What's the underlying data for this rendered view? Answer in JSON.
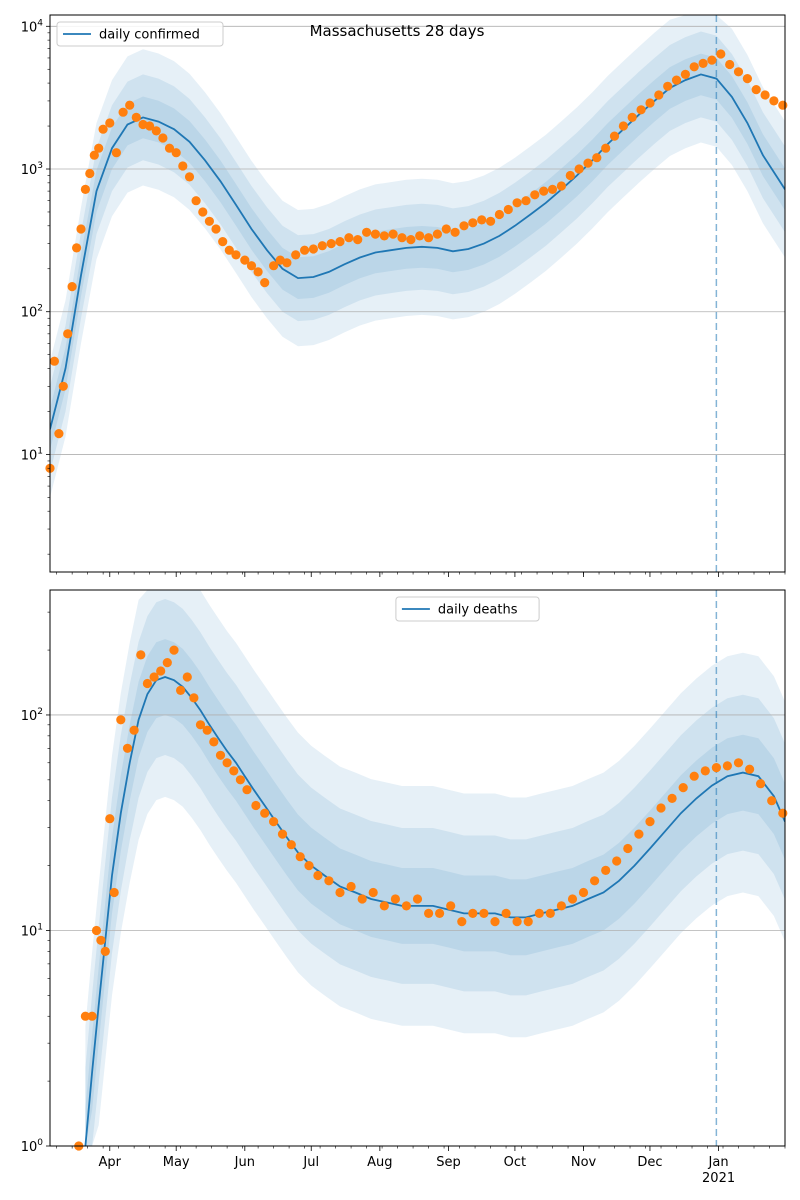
{
  "figure_title": "Massachusetts 28 days",
  "colors": {
    "line": "#1f77b4",
    "points": "#ff7f0e",
    "band": "#1f77b4",
    "vline": "#1f77b4",
    "grid": "#b0b0b0"
  },
  "x_axis": {
    "ticks": [
      {
        "date": "2020-04-01",
        "label": "Apr"
      },
      {
        "date": "2020-05-01",
        "label": "May"
      },
      {
        "date": "2020-06-01",
        "label": "Jun"
      },
      {
        "date": "2020-07-01",
        "label": "Jul"
      },
      {
        "date": "2020-08-01",
        "label": "Aug"
      },
      {
        "date": "2020-09-01",
        "label": "Sep"
      },
      {
        "date": "2020-10-01",
        "label": "Oct"
      },
      {
        "date": "2020-11-01",
        "label": "Nov"
      },
      {
        "date": "2020-12-01",
        "label": "Dec"
      },
      {
        "date": "2021-01-01",
        "label": "Jan"
      }
    ],
    "year_label": "2021",
    "range": [
      "2020-03-05",
      "2021-01-31"
    ]
  },
  "chart_data": [
    {
      "type": "line",
      "title": "Massachusetts 28 days",
      "legend": {
        "label": "daily confirmed",
        "placement": "upper-left"
      },
      "yscale": "log",
      "ylim": [
        1.5,
        12000
      ],
      "y_ticks": [
        {
          "value": 10,
          "base": "10",
          "exp": "1"
        },
        {
          "value": 100,
          "base": "10",
          "exp": "2"
        },
        {
          "value": 1000,
          "base": "10",
          "exp": "3"
        },
        {
          "value": 10000,
          "base": "10",
          "exp": "4"
        }
      ],
      "grid": "y-major",
      "vline_date": "2020-12-31",
      "line": {
        "x": [
          "2020-03-05",
          "2020-03-12",
          "2020-03-19",
          "2020-03-26",
          "2020-04-02",
          "2020-04-09",
          "2020-04-16",
          "2020-04-23",
          "2020-04-30",
          "2020-05-07",
          "2020-05-14",
          "2020-05-21",
          "2020-05-28",
          "2020-06-04",
          "2020-06-11",
          "2020-06-18",
          "2020-06-25",
          "2020-07-02",
          "2020-07-09",
          "2020-07-16",
          "2020-07-23",
          "2020-07-30",
          "2020-08-06",
          "2020-08-13",
          "2020-08-20",
          "2020-08-27",
          "2020-09-03",
          "2020-09-10",
          "2020-09-17",
          "2020-09-24",
          "2020-10-01",
          "2020-10-08",
          "2020-10-15",
          "2020-10-22",
          "2020-10-29",
          "2020-11-05",
          "2020-11-12",
          "2020-11-19",
          "2020-11-26",
          "2020-12-03",
          "2020-12-10",
          "2020-12-17",
          "2020-12-24",
          "2020-12-31",
          "2021-01-07",
          "2021-01-14",
          "2021-01-21",
          "2021-01-28",
          "2021-01-31"
        ],
        "y": [
          15,
          40,
          180,
          700,
          1400,
          2050,
          2300,
          2150,
          1900,
          1550,
          1150,
          820,
          560,
          380,
          270,
          200,
          172,
          175,
          190,
          215,
          240,
          260,
          270,
          280,
          285,
          280,
          265,
          275,
          300,
          340,
          400,
          480,
          580,
          720,
          900,
          1150,
          1500,
          1900,
          2400,
          3000,
          3700,
          4200,
          4600,
          4300,
          3200,
          2100,
          1250,
          850,
          720
        ]
      },
      "band_factors": {
        "inner": 1.4,
        "middle": 2.0,
        "outer": 3.0
      },
      "points": {
        "x": [
          "2020-03-05",
          "2020-03-07",
          "2020-03-09",
          "2020-03-11",
          "2020-03-13",
          "2020-03-15",
          "2020-03-17",
          "2020-03-19",
          "2020-03-21",
          "2020-03-23",
          "2020-03-25",
          "2020-03-27",
          "2020-03-29",
          "2020-04-01",
          "2020-04-04",
          "2020-04-07",
          "2020-04-10",
          "2020-04-13",
          "2020-04-16",
          "2020-04-19",
          "2020-04-22",
          "2020-04-25",
          "2020-04-28",
          "2020-05-01",
          "2020-05-04",
          "2020-05-07",
          "2020-05-10",
          "2020-05-13",
          "2020-05-16",
          "2020-05-19",
          "2020-05-22",
          "2020-05-25",
          "2020-05-28",
          "2020-06-01",
          "2020-06-04",
          "2020-06-07",
          "2020-06-10",
          "2020-06-14",
          "2020-06-17",
          "2020-06-20",
          "2020-06-24",
          "2020-06-28",
          "2020-07-02",
          "2020-07-06",
          "2020-07-10",
          "2020-07-14",
          "2020-07-18",
          "2020-07-22",
          "2020-07-26",
          "2020-07-30",
          "2020-08-03",
          "2020-08-07",
          "2020-08-11",
          "2020-08-15",
          "2020-08-19",
          "2020-08-23",
          "2020-08-27",
          "2020-08-31",
          "2020-09-04",
          "2020-09-08",
          "2020-09-12",
          "2020-09-16",
          "2020-09-20",
          "2020-09-24",
          "2020-09-28",
          "2020-10-02",
          "2020-10-06",
          "2020-10-10",
          "2020-10-14",
          "2020-10-18",
          "2020-10-22",
          "2020-10-26",
          "2020-10-30",
          "2020-11-03",
          "2020-11-07",
          "2020-11-11",
          "2020-11-15",
          "2020-11-19",
          "2020-11-23",
          "2020-11-27",
          "2020-12-01",
          "2020-12-05",
          "2020-12-09",
          "2020-12-13",
          "2020-12-17",
          "2020-12-21",
          "2020-12-25",
          "2020-12-29",
          "2021-01-02",
          "2021-01-06",
          "2021-01-10",
          "2021-01-14",
          "2021-01-18",
          "2021-01-22",
          "2021-01-26",
          "2021-01-30"
        ],
        "y": [
          8,
          45,
          14,
          30,
          70,
          150,
          280,
          380,
          720,
          930,
          1250,
          1400,
          1900,
          2100,
          1300,
          2500,
          2800,
          2300,
          2050,
          2000,
          1850,
          1650,
          1400,
          1300,
          1050,
          880,
          600,
          500,
          430,
          380,
          310,
          270,
          250,
          230,
          210,
          190,
          160,
          210,
          230,
          220,
          250,
          270,
          275,
          290,
          300,
          310,
          330,
          320,
          360,
          350,
          340,
          350,
          330,
          320,
          340,
          330,
          350,
          380,
          360,
          400,
          420,
          440,
          430,
          480,
          520,
          580,
          600,
          660,
          700,
          720,
          760,
          900,
          1000,
          1100,
          1200,
          1400,
          1700,
          2000,
          2300,
          2600,
          2900,
          3300,
          3800,
          4200,
          4600,
          5200,
          5500,
          5800,
          6400,
          5400,
          4800,
          4300,
          3600,
          3300,
          3000,
          2800
        ]
      }
    },
    {
      "type": "line",
      "title": "",
      "legend": {
        "label": "daily deaths",
        "placement": "upper-center"
      },
      "yscale": "log",
      "ylim": [
        1,
        380
      ],
      "y_ticks": [
        {
          "value": 1,
          "base": "10",
          "exp": "0"
        },
        {
          "value": 10,
          "base": "10",
          "exp": "1"
        },
        {
          "value": 100,
          "base": "10",
          "exp": "2"
        }
      ],
      "grid": "y-major",
      "vline_date": "2020-12-31",
      "line": {
        "x": [
          "2020-03-21",
          "2020-03-24",
          "2020-03-27",
          "2020-03-30",
          "2020-04-02",
          "2020-04-06",
          "2020-04-10",
          "2020-04-14",
          "2020-04-18",
          "2020-04-22",
          "2020-04-26",
          "2020-04-30",
          "2020-05-04",
          "2020-05-08",
          "2020-05-12",
          "2020-05-16",
          "2020-05-20",
          "2020-05-24",
          "2020-05-28",
          "2020-06-01",
          "2020-06-05",
          "2020-06-10",
          "2020-06-15",
          "2020-06-20",
          "2020-06-25",
          "2020-07-01",
          "2020-07-07",
          "2020-07-14",
          "2020-07-21",
          "2020-07-28",
          "2020-08-04",
          "2020-08-11",
          "2020-08-18",
          "2020-08-25",
          "2020-09-01",
          "2020-09-08",
          "2020-09-15",
          "2020-09-22",
          "2020-09-29",
          "2020-10-06",
          "2020-10-13",
          "2020-10-20",
          "2020-10-27",
          "2020-11-03",
          "2020-11-10",
          "2020-11-17",
          "2020-11-24",
          "2020-12-01",
          "2020-12-08",
          "2020-12-15",
          "2020-12-22",
          "2020-12-29",
          "2021-01-05",
          "2021-01-12",
          "2021-01-19",
          "2021-01-26",
          "2021-01-31"
        ],
        "y": [
          1,
          2.2,
          4.5,
          9,
          18,
          35,
          60,
          95,
          125,
          145,
          150,
          145,
          135,
          120,
          105,
          90,
          78,
          68,
          60,
          52,
          45,
          38,
          32,
          27,
          23,
          20,
          18,
          16,
          15,
          14,
          13.5,
          13,
          13,
          13,
          12.5,
          12,
          12,
          12,
          11.5,
          11.5,
          12,
          12.5,
          13,
          14,
          15,
          17,
          20,
          24,
          29,
          35,
          41,
          47,
          52,
          54,
          52,
          42,
          32
        ]
      },
      "band_factors": {
        "inner": 1.5,
        "middle": 2.3,
        "outer": 3.6
      },
      "points": {
        "x": [
          "2020-03-18",
          "2020-03-21",
          "2020-03-24",
          "2020-03-26",
          "2020-03-28",
          "2020-03-30",
          "2020-04-01",
          "2020-04-03",
          "2020-04-06",
          "2020-04-09",
          "2020-04-12",
          "2020-04-15",
          "2020-04-18",
          "2020-04-21",
          "2020-04-24",
          "2020-04-27",
          "2020-04-30",
          "2020-05-03",
          "2020-05-06",
          "2020-05-09",
          "2020-05-12",
          "2020-05-15",
          "2020-05-18",
          "2020-05-21",
          "2020-05-24",
          "2020-05-27",
          "2020-05-30",
          "2020-06-02",
          "2020-06-06",
          "2020-06-10",
          "2020-06-14",
          "2020-06-18",
          "2020-06-22",
          "2020-06-26",
          "2020-06-30",
          "2020-07-04",
          "2020-07-09",
          "2020-07-14",
          "2020-07-19",
          "2020-07-24",
          "2020-07-29",
          "2020-08-03",
          "2020-08-08",
          "2020-08-13",
          "2020-08-18",
          "2020-08-23",
          "2020-08-28",
          "2020-09-02",
          "2020-09-07",
          "2020-09-12",
          "2020-09-17",
          "2020-09-22",
          "2020-09-27",
          "2020-10-02",
          "2020-10-07",
          "2020-10-12",
          "2020-10-17",
          "2020-10-22",
          "2020-10-27",
          "2020-11-01",
          "2020-11-06",
          "2020-11-11",
          "2020-11-16",
          "2020-11-21",
          "2020-11-26",
          "2020-12-01",
          "2020-12-06",
          "2020-12-11",
          "2020-12-16",
          "2020-12-21",
          "2020-12-26",
          "2020-12-31",
          "2021-01-05",
          "2021-01-10",
          "2021-01-15",
          "2021-01-20",
          "2021-01-25",
          "2021-01-30"
        ],
        "y": [
          1,
          4,
          4,
          10,
          9,
          8,
          33,
          15,
          95,
          70,
          85,
          190,
          140,
          150,
          160,
          175,
          200,
          130,
          150,
          120,
          90,
          85,
          75,
          65,
          60,
          55,
          50,
          45,
          38,
          35,
          32,
          28,
          25,
          22,
          20,
          18,
          17,
          15,
          16,
          14,
          15,
          13,
          14,
          13,
          14,
          12,
          12,
          13,
          11,
          12,
          12,
          11,
          12,
          11,
          11,
          12,
          12,
          13,
          14,
          15,
          17,
          19,
          21,
          24,
          28,
          32,
          37,
          41,
          46,
          52,
          55,
          57,
          58,
          60,
          56,
          48,
          40,
          35
        ]
      }
    }
  ]
}
